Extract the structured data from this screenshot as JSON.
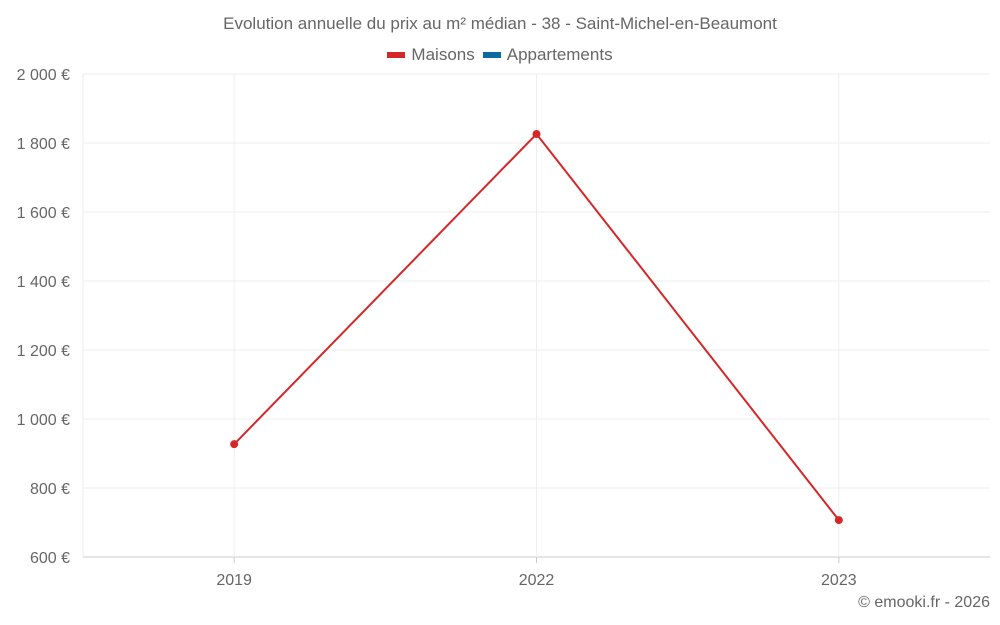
{
  "chart_data": {
    "type": "line",
    "title": "Evolution annuelle du prix au m² médian - 38 - Saint-Michel-en-Beaumont",
    "categories": [
      "2019",
      "2022",
      "2023"
    ],
    "series": [
      {
        "name": "Maisons",
        "color": "#d62728",
        "values": [
          927,
          1826,
          707
        ]
      },
      {
        "name": "Appartements",
        "color": "#0a6aa1",
        "values": [
          null,
          null,
          null
        ]
      }
    ],
    "ylim": [
      600,
      2000
    ],
    "yticks": [
      600,
      800,
      1000,
      1200,
      1400,
      1600,
      1800,
      2000
    ],
    "ytick_labels": [
      "600 €",
      "800 €",
      "1 000 €",
      "1 200 €",
      "1 400 €",
      "1 600 €",
      "1 800 €",
      "2 000 €"
    ],
    "grid": true,
    "legend_position": "top-center",
    "xlabel": "",
    "ylabel": ""
  },
  "credit": "© emooki.fr - 2026"
}
